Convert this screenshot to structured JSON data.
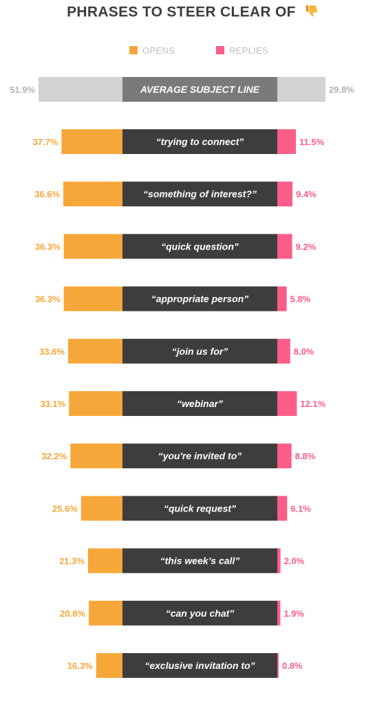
{
  "title": "PHRASES TO STEER CLEAR OF",
  "title_icon": "thumbs-down-icon",
  "colors": {
    "opens": "#f6a739",
    "replies": "#fc5d88",
    "label_bar": "#3d3d3d",
    "average_side": "#d2d2d2",
    "average_label_bar": "#7a7a7a",
    "average_text": "#b3b3b3",
    "title": "#3d3d3d"
  },
  "chart_data": {
    "type": "bar",
    "layout": "butterfly",
    "legend": {
      "placement": "top-center",
      "entries": [
        "OPENS",
        "REPLIES"
      ]
    },
    "series": [
      {
        "name": "OPENS",
        "unit": "%"
      },
      {
        "name": "REPLIES",
        "unit": "%"
      }
    ],
    "average": {
      "label": "AVERAGE SUBJECT LINE",
      "opens": 51.9,
      "replies": 29.8,
      "opens_label": "51.9%",
      "replies_label": "29.8%"
    },
    "rows": [
      {
        "phrase": "“trying to connect”",
        "opens": 37.7,
        "replies": 11.5,
        "opens_label": "37.7%",
        "replies_label": "11.5%"
      },
      {
        "phrase": "“something of interest?”",
        "opens": 36.6,
        "replies": 9.4,
        "opens_label": "36.6%",
        "replies_label": "9.4%"
      },
      {
        "phrase": "“quick question”",
        "opens": 36.3,
        "replies": 9.2,
        "opens_label": "36.3%",
        "replies_label": "9.2%"
      },
      {
        "phrase": "“appropriate person”",
        "opens": 36.3,
        "replies": 5.8,
        "opens_label": "36.3%",
        "replies_label": "5.8%"
      },
      {
        "phrase": "“join us for”",
        "opens": 33.6,
        "replies": 8.0,
        "opens_label": "33.6%",
        "replies_label": "8.0%"
      },
      {
        "phrase": "“webinar”",
        "opens": 33.1,
        "replies": 12.1,
        "opens_label": "33.1%",
        "replies_label": "12.1%"
      },
      {
        "phrase": "“you're invited to”",
        "opens": 32.2,
        "replies": 8.8,
        "opens_label": "32.2%",
        "replies_label": "8.8%"
      },
      {
        "phrase": "“quick request”",
        "opens": 25.6,
        "replies": 6.1,
        "opens_label": "25.6%",
        "replies_label": "6.1%"
      },
      {
        "phrase": "“this week’s call”",
        "opens": 21.3,
        "replies": 2.0,
        "opens_label": "21.3%",
        "replies_label": "2.0%"
      },
      {
        "phrase": "“can you chat”",
        "opens": 20.8,
        "replies": 1.9,
        "opens_label": "20.8%",
        "replies_label": "1.9%"
      },
      {
        "phrase": "“exclusive invitation to”",
        "opens": 16.3,
        "replies": 0.8,
        "opens_label": "16.3%",
        "replies_label": "0.8%"
      }
    ]
  }
}
